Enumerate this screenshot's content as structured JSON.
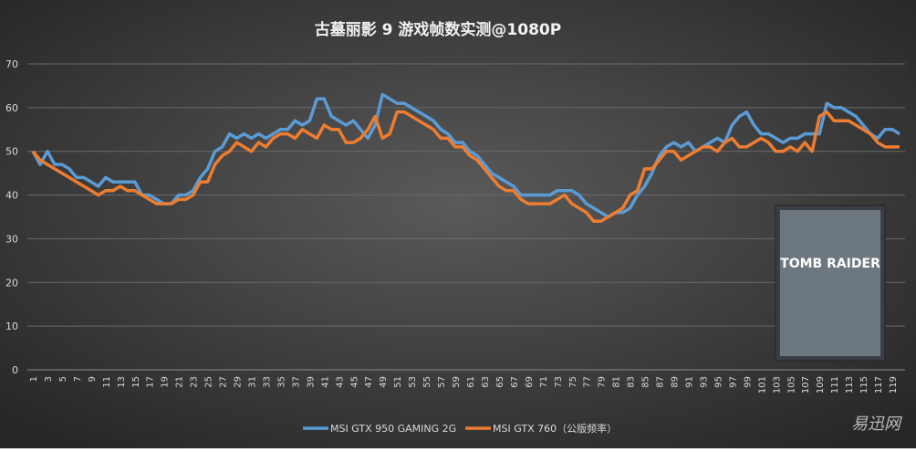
{
  "chart_data": {
    "type": "line",
    "title": "古墓丽影 9 游戏帧数实测@1080P",
    "categories": [
      "1",
      null,
      "3",
      null,
      "5",
      null,
      "7",
      null,
      "9",
      null,
      "11",
      null,
      "13",
      null,
      "15",
      null,
      "17",
      null,
      "19",
      null,
      "21",
      null,
      "23",
      null,
      "25",
      null,
      "27",
      null,
      "29",
      null,
      "31",
      null,
      "33",
      null,
      "35",
      null,
      "37",
      null,
      "39",
      null,
      "41",
      null,
      "43",
      null,
      "45",
      null,
      "47",
      null,
      "49",
      null,
      "51",
      null,
      "53",
      null,
      "55",
      null,
      "57",
      null,
      "59",
      null,
      "61",
      null,
      "63",
      null,
      "65",
      null,
      "67",
      null,
      "69",
      null,
      "71",
      null,
      "73",
      null,
      "75",
      null,
      "77",
      null,
      "79",
      null,
      "81",
      null,
      "83",
      null,
      "85",
      null,
      "87",
      null,
      "89",
      null,
      "91",
      null,
      "93",
      null,
      "95",
      null,
      "97",
      null,
      "99",
      null,
      "101",
      null,
      "103",
      null,
      "105",
      null,
      "107",
      null,
      "109",
      null,
      "111",
      null,
      "113",
      null,
      "115",
      null,
      "117",
      null,
      "119",
      null
    ],
    "series": [
      {
        "name": "MSI GTX 950 GAMING 2G",
        "color": "#5b9bd5",
        "values": [
          50,
          47,
          50,
          47,
          47,
          46,
          44,
          44,
          43,
          42,
          44,
          43,
          43,
          43,
          43,
          40,
          40,
          39,
          38,
          38,
          40,
          40,
          41,
          44,
          46,
          50,
          51,
          54,
          53,
          54,
          53,
          54,
          53,
          54,
          55,
          55,
          57,
          56,
          57,
          62,
          62,
          58,
          57,
          56,
          57,
          55,
          53,
          56,
          63,
          62,
          61,
          61,
          60,
          59,
          58,
          57,
          55,
          54,
          52,
          52,
          50,
          49,
          47,
          45,
          44,
          43,
          42,
          40,
          40,
          40,
          40,
          40,
          41,
          41,
          41,
          40,
          38,
          37,
          36,
          35,
          36,
          36,
          37,
          40,
          42,
          45,
          49,
          51,
          52,
          51,
          52,
          50,
          51,
          52,
          53,
          52,
          56,
          58,
          59,
          56,
          54,
          54,
          53,
          52,
          53,
          53,
          54,
          54,
          54,
          61,
          60,
          60,
          59,
          58,
          56,
          54,
          53,
          55,
          55,
          54
        ]
      },
      {
        "name": "MSI GTX 760（公版频率）",
        "color": "#ed7d31",
        "values": [
          50,
          48,
          47,
          46,
          45,
          44,
          43,
          42,
          41,
          40,
          41,
          41,
          42,
          41,
          41,
          40,
          39,
          38,
          38,
          38,
          39,
          39,
          40,
          43,
          43,
          47,
          49,
          50,
          52,
          51,
          50,
          52,
          51,
          53,
          54,
          54,
          53,
          55,
          54,
          53,
          56,
          55,
          55,
          52,
          52,
          53,
          55,
          58,
          53,
          54,
          59,
          59,
          58,
          57,
          56,
          55,
          53,
          53,
          51,
          51,
          49,
          48,
          46,
          44,
          42,
          41,
          41,
          39,
          38,
          38,
          38,
          38,
          39,
          40,
          38,
          37,
          36,
          34,
          34,
          35,
          36,
          37,
          40,
          41,
          46,
          46,
          48,
          50,
          50,
          48,
          49,
          50,
          51,
          51,
          50,
          52,
          53,
          51,
          51,
          52,
          53,
          52,
          50,
          50,
          51,
          50,
          52,
          50,
          58,
          59,
          57,
          57,
          57,
          56,
          55,
          54,
          52,
          51,
          51,
          51
        ]
      }
    ],
    "ylim": [
      0,
      70
    ],
    "yticks": [
      0,
      10,
      20,
      30,
      40,
      50,
      60,
      70
    ],
    "grid": true,
    "legend": "bottom",
    "cover_text": "TOMB RAIDER",
    "watermark": "易迅网"
  }
}
